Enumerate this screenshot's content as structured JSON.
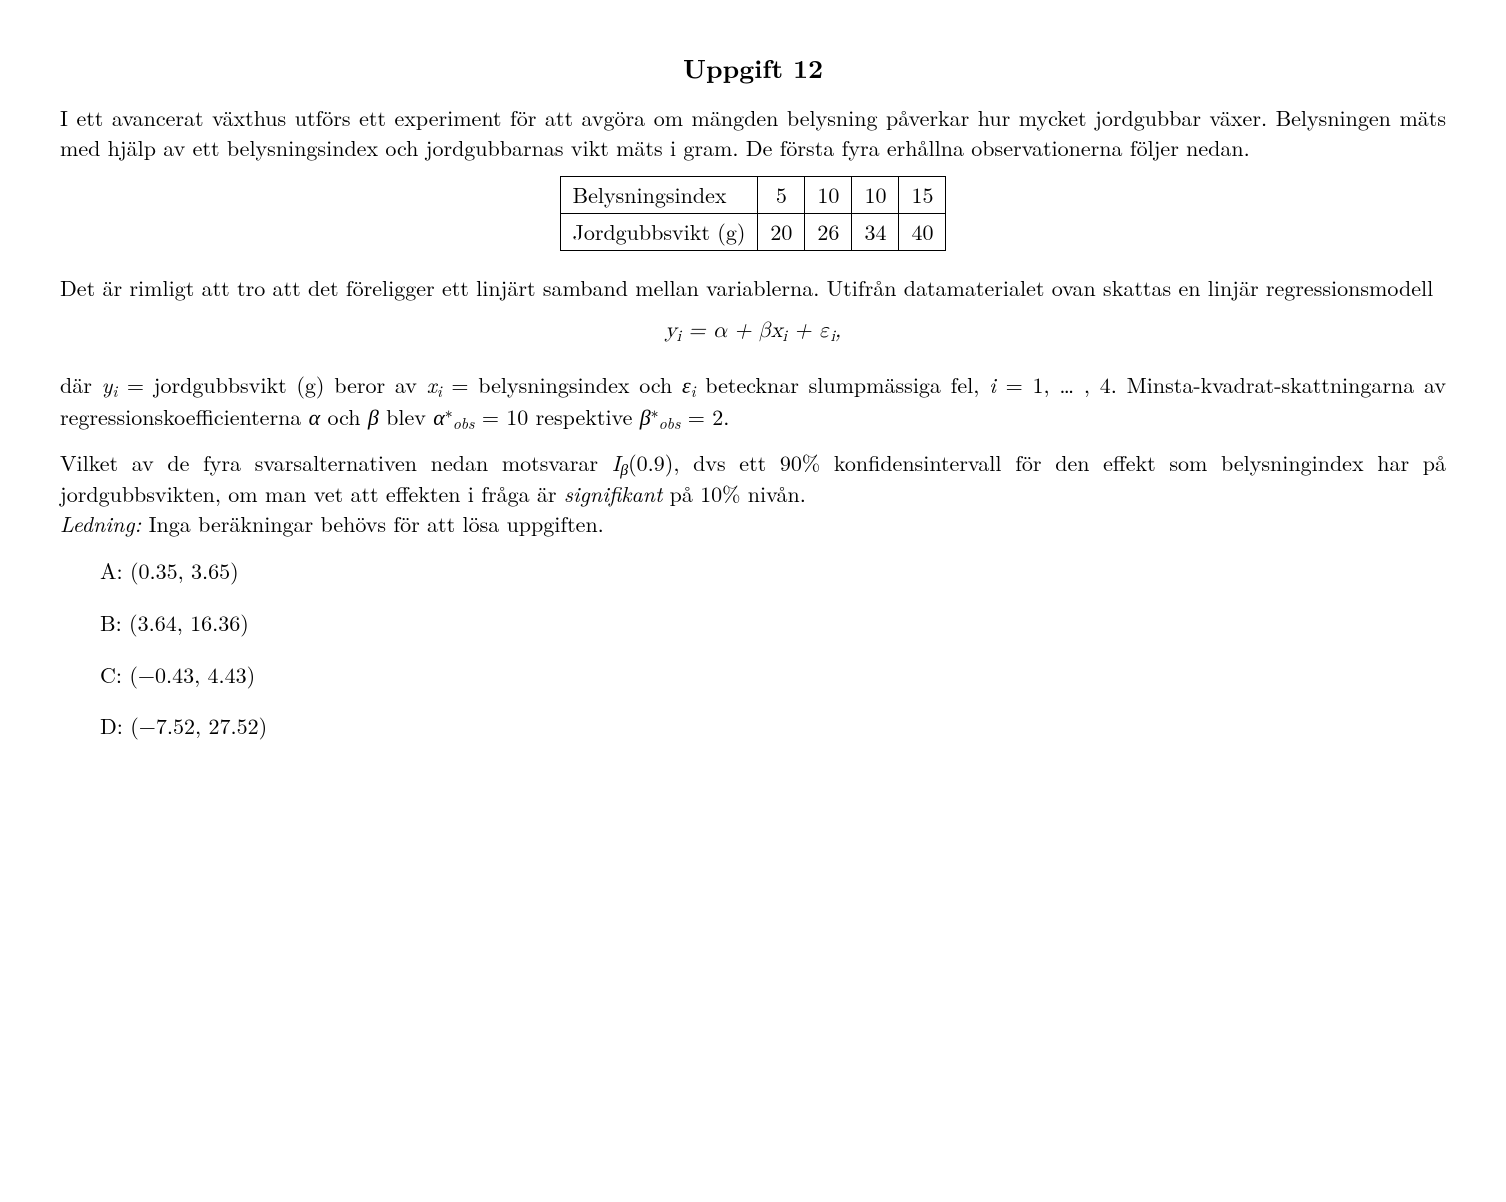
{
  "title": "Uppgift 12",
  "para1": "I ett avancerat växthus utförs ett experiment för att avgöra om mängden belysning påverkar hur mycket jordgubbar växer. Belysningen mäts med hjälp av ett belysningsindex och jordgubbarnas vikt mäts i gram. De första fyra erhållna observationerna följer nedan.",
  "table": {
    "row1_label": "Belysningsindex",
    "row1_vals": [
      "5",
      "10",
      "10",
      "15"
    ],
    "row2_label": "Jordgubbsvikt (g)",
    "row2_vals": [
      "20",
      "26",
      "34",
      "40"
    ]
  },
  "para2": "Det är rimligt att tro att det föreligger ett linjärt samband mellan variablerna. Utifrån datamaterialet ovan skattas en linjär regressionsmodell",
  "equation_plain": "yᵢ = α + βxᵢ + εᵢ,",
  "para3_a": "där ",
  "para3_b": " = jordgubbsvikt (g) beror av ",
  "para3_c": " = belysningsindex och ",
  "para3_d": " betecknar slumpmässiga fel, ",
  "para3_e": " = 1, … , 4. Minsta-kvadrat-skattningarna av regressionskoefficienterna ",
  "para3_f": " och ",
  "para3_g": " blev ",
  "para3_h": " = 10 respektive ",
  "para3_i": " = 2.",
  "sym_yi": "y",
  "sym_xi": "x",
  "sym_epsi": "ε",
  "sym_i": "i",
  "sym_alpha": "α",
  "sym_beta": "β",
  "sym_alpha_star": "α",
  "sym_beta_star": "β",
  "sym_obs": "obs",
  "sym_star": "∗",
  "para4_a": "Vilket av de fyra svarsalternativen nedan motsvarar ",
  "para4_b": "(0.9), dvs ett 90% konfidensintervall för den effekt som belysningindex har på jordgubbsvikten, om man vet att effekten i fråga är ",
  "para4_signifikant": "signifikant",
  "para4_c": " på 10% nivån.",
  "sym_Ibeta": "I",
  "ledning_label": "Ledning:",
  "ledning_text": " Inga beräkningar behövs för att lösa uppgiften.",
  "answers": {
    "A": "A:  (0.35, 3.65)",
    "B": "B:  (3.64, 16.36)",
    "C": "C:  (−0.43, 4.43)",
    "D": "D:  (−7.52, 27.52)"
  }
}
